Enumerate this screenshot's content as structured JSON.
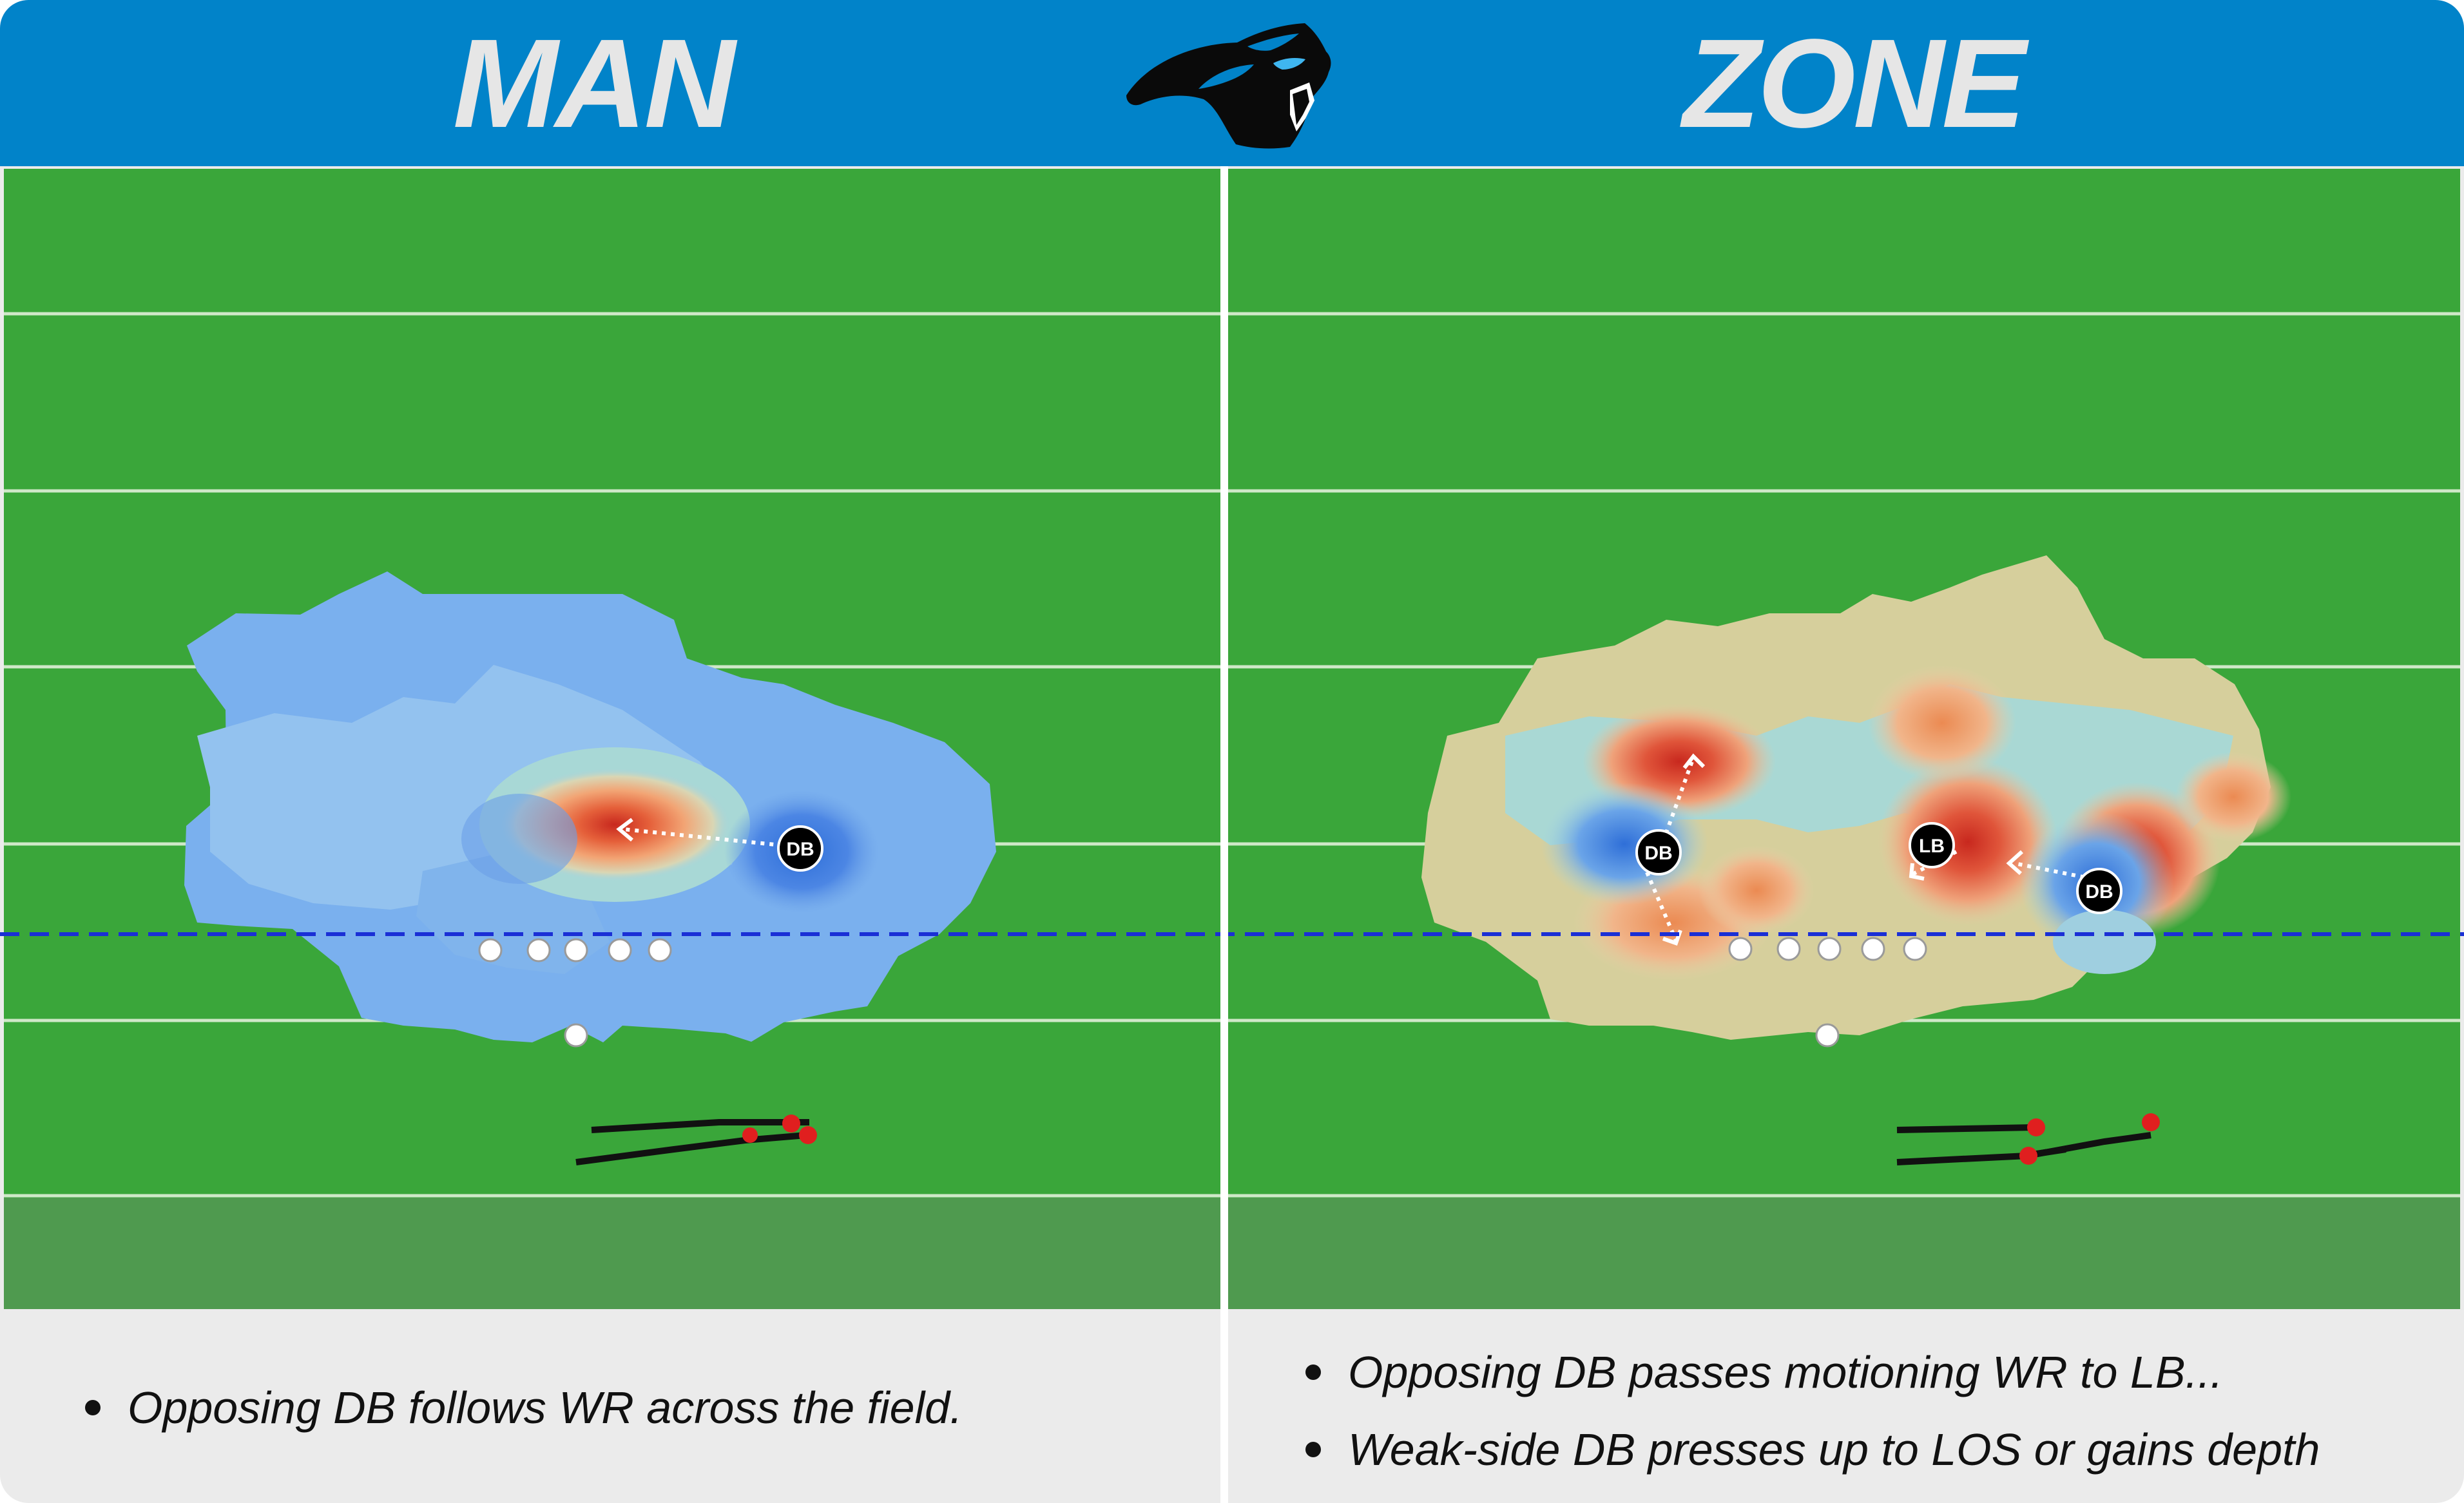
{
  "header": {
    "man_title": "MAN",
    "zone_title": "ZONE",
    "logo_icon": "panther-head-logo",
    "background_color": "#0183c9"
  },
  "fields": {
    "man": {
      "players": [
        {
          "label": "DB"
        }
      ]
    },
    "zone": {
      "players": [
        {
          "label": "DB"
        },
        {
          "label": "LB"
        },
        {
          "label": "DB"
        }
      ]
    },
    "line_of_scrimmage_color": "#1a2fd6",
    "field_color": "#3aa63a",
    "endzone_color": "#4f9a4f"
  },
  "notes": {
    "man": [
      "Opposing DB follows WR across the field."
    ],
    "zone": [
      "Opposing DB passes motioning WR to LB...",
      "Weak-side DB presses up to LOS or gains depth"
    ]
  }
}
